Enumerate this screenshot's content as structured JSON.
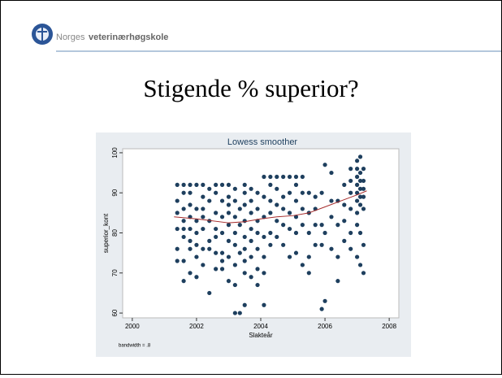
{
  "header": {
    "org_prefix": "Norges",
    "org_name": "veterinærhøgskole"
  },
  "slide_title": "Stigende % superior?",
  "chart_data": {
    "type": "scatter",
    "title": "Lowess smoother",
    "x_label": "Slakteår",
    "y_label": "superior_kont",
    "note": "bandwidth = .8",
    "color": "#1e3f5e",
    "x": [
      2001.4,
      2001.4,
      2001.4,
      2001.4,
      2001.4,
      2001.4,
      2001.6,
      2001.6,
      2001.6,
      2001.6,
      2001.6,
      2001.6,
      2001.6,
      2001.6,
      2001.8,
      2001.8,
      2001.8,
      2001.8,
      2001.8,
      2001.8,
      2001.8,
      2001.8,
      2002.0,
      2002.0,
      2002.0,
      2002.0,
      2002.0,
      2002.0,
      2002.0,
      2002.2,
      2002.2,
      2002.2,
      2002.2,
      2002.2,
      2002.2,
      2002.2,
      2002.4,
      2002.4,
      2002.4,
      2002.4,
      2002.4,
      2002.4,
      2002.6,
      2002.6,
      2002.6,
      2002.6,
      2002.6,
      2002.6,
      2002.6,
      2002.8,
      2002.8,
      2002.8,
      2002.8,
      2002.8,
      2002.8,
      2002.8,
      2003.0,
      2003.0,
      2003.0,
      2003.0,
      2003.0,
      2003.0,
      2003.0,
      2003.0,
      2003.2,
      2003.2,
      2003.2,
      2003.2,
      2003.2,
      2003.2,
      2003.2,
      2003.2,
      2003.35,
      2003.35,
      2003.35,
      2003.35,
      2003.5,
      2003.5,
      2003.5,
      2003.5,
      2003.5,
      2003.5,
      2003.5,
      2003.5,
      2003.5,
      2003.7,
      2003.7,
      2003.7,
      2003.7,
      2003.7,
      2003.7,
      2003.7,
      2003.9,
      2003.9,
      2003.9,
      2003.9,
      2003.9,
      2003.9,
      2003.9,
      2004.1,
      2004.1,
      2004.1,
      2004.1,
      2004.1,
      2004.1,
      2004.1,
      2004.3,
      2004.3,
      2004.3,
      2004.3,
      2004.3,
      2004.3,
      2004.5,
      2004.5,
      2004.5,
      2004.5,
      2004.5,
      2004.7,
      2004.7,
      2004.7,
      2004.7,
      2004.7,
      2004.9,
      2004.9,
      2004.9,
      2004.9,
      2004.9,
      2005.1,
      2005.1,
      2005.1,
      2005.1,
      2005.1,
      2005.1,
      2005.3,
      2005.3,
      2005.3,
      2005.3,
      2005.3,
      2005.5,
      2005.5,
      2005.5,
      2005.5,
      2005.5,
      2005.7,
      2005.7,
      2005.7,
      2005.7,
      2005.9,
      2005.9,
      2005.9,
      2005.9,
      2006.0,
      2006.0,
      2006.0,
      2006.2,
      2006.2,
      2006.2,
      2006.2,
      2006.4,
      2006.4,
      2006.4,
      2006.4,
      2006.6,
      2006.6,
      2006.6,
      2006.6,
      2006.8,
      2006.8,
      2006.8,
      2006.8,
      2006.8,
      2006.8,
      2007.0,
      2007.0,
      2007.0,
      2007.0,
      2007.0,
      2007.0,
      2007.0,
      2007.0,
      2007.0,
      2007.1,
      2007.1,
      2007.1,
      2007.1,
      2007.1,
      2007.1,
      2007.1,
      2007.1,
      2007.2,
      2007.2,
      2007.2,
      2007.2,
      2007.2,
      2007.2,
      2007.2
    ],
    "values": [
      92,
      88,
      85,
      81,
      76,
      73,
      92,
      90,
      86,
      83,
      81,
      79,
      73,
      68,
      92,
      90,
      87,
      84,
      81,
      78,
      76,
      70,
      92,
      86,
      83,
      80,
      77,
      74,
      69,
      92,
      89,
      86,
      84,
      81,
      76,
      72,
      91,
      88,
      83,
      78,
      76,
      65,
      92,
      90,
      85,
      81,
      79,
      75,
      71,
      92,
      88,
      84,
      80,
      75,
      73,
      71,
      92,
      89,
      87,
      85,
      82,
      78,
      74,
      68,
      91,
      88,
      84,
      80,
      77,
      72,
      67,
      60,
      60,
      86,
      82,
      75,
      92,
      90,
      87,
      83,
      79,
      76,
      73,
      70,
      62,
      91,
      88,
      85,
      81,
      78,
      74,
      69,
      90,
      86,
      83,
      80,
      76,
      71,
      67,
      94,
      89,
      84,
      79,
      74,
      70,
      62,
      94,
      92,
      88,
      85,
      80,
      77,
      94,
      91,
      87,
      83,
      79,
      94,
      89,
      86,
      82,
      77,
      94,
      90,
      85,
      81,
      74,
      94,
      92,
      88,
      84,
      80,
      75,
      94,
      90,
      86,
      82,
      72,
      90,
      85,
      80,
      74,
      70,
      89,
      86,
      82,
      77,
      90,
      82,
      77,
      61,
      97,
      63,
      80,
      95,
      88,
      84,
      76,
      88,
      82,
      74,
      68,
      92,
      87,
      83,
      78,
      96,
      93,
      90,
      86,
      80,
      76,
      98,
      96,
      94,
      92,
      90,
      88,
      85,
      82,
      74,
      99,
      95,
      93,
      91,
      89,
      87,
      80,
      72,
      96,
      93,
      91,
      89,
      86,
      77,
      70
    ],
    "smoother": {
      "color": "#a52a2a",
      "x": [
        2001.3,
        2002,
        2003,
        2003.5,
        2004,
        2004.5,
        2005,
        2005.5,
        2006,
        2006.5,
        2007,
        2007.3
      ],
      "values": [
        84,
        83.5,
        82.5,
        82.8,
        83.5,
        84,
        84.3,
        85,
        86.5,
        88,
        89.5,
        90.5
      ]
    },
    "xlim": [
      1999.7,
      2008.3
    ],
    "xticks": [
      2000,
      2002,
      2004,
      2006,
      2008
    ],
    "ylim": [
      58.8,
      101
    ],
    "yticks": [
      60,
      70,
      80,
      90,
      100
    ]
  }
}
